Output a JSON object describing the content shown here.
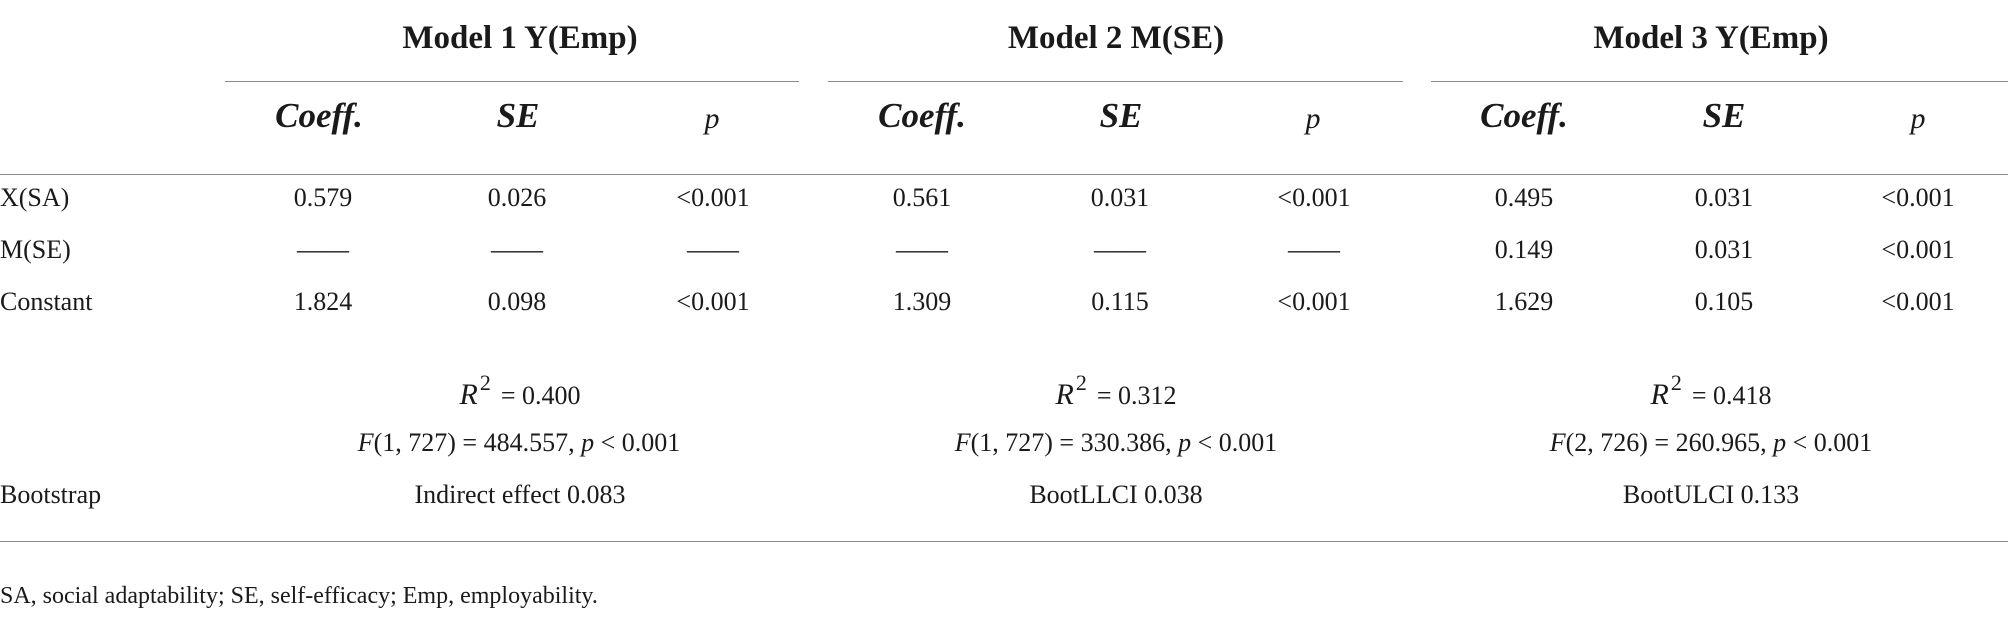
{
  "models": [
    {
      "title": "Model 1 Y(Emp)",
      "r2": "= 0.400",
      "f_label": "F",
      "f_args": "(1, 727) = 484.557, ",
      "p_label": "p",
      "p_value": " < 0.001",
      "bootstrap": "Indirect effect 0.083"
    },
    {
      "title": "Model 2 M(SE)",
      "r2": "= 0.312",
      "f_label": "F",
      "f_args": "(1, 727) = 330.386, ",
      "p_label": "p",
      "p_value": " < 0.001",
      "bootstrap": "BootLLCI 0.038"
    },
    {
      "title": "Model 3 Y(Emp)",
      "r2": "= 0.418",
      "f_label": "F",
      "f_args": "(2, 726) = 260.965, ",
      "p_label": "p",
      "p_value": " < 0.001",
      "bootstrap": "BootULCI 0.133"
    }
  ],
  "column_headers": [
    "Coeff.",
    "SE",
    "p"
  ],
  "r2_symbol": "R",
  "r2_exponent": "2",
  "rows": [
    {
      "label": "X(SA)",
      "values": [
        "0.579",
        "0.026",
        "<0.001",
        "0.561",
        "0.031",
        "<0.001",
        "0.495",
        "0.031",
        "<0.001"
      ]
    },
    {
      "label": "M(SE)",
      "values": [
        "——",
        "——",
        "——",
        "——",
        "——",
        "——",
        "0.149",
        "0.031",
        "<0.001"
      ]
    },
    {
      "label": "Constant",
      "values": [
        "1.824",
        "0.098",
        "<0.001",
        "1.309",
        "0.115",
        "<0.001",
        "1.629",
        "0.105",
        "<0.001"
      ]
    }
  ],
  "bootstrap_label": "Bootstrap",
  "footnote": "SA, social adaptability; SE, self-efficacy; Emp, employability."
}
